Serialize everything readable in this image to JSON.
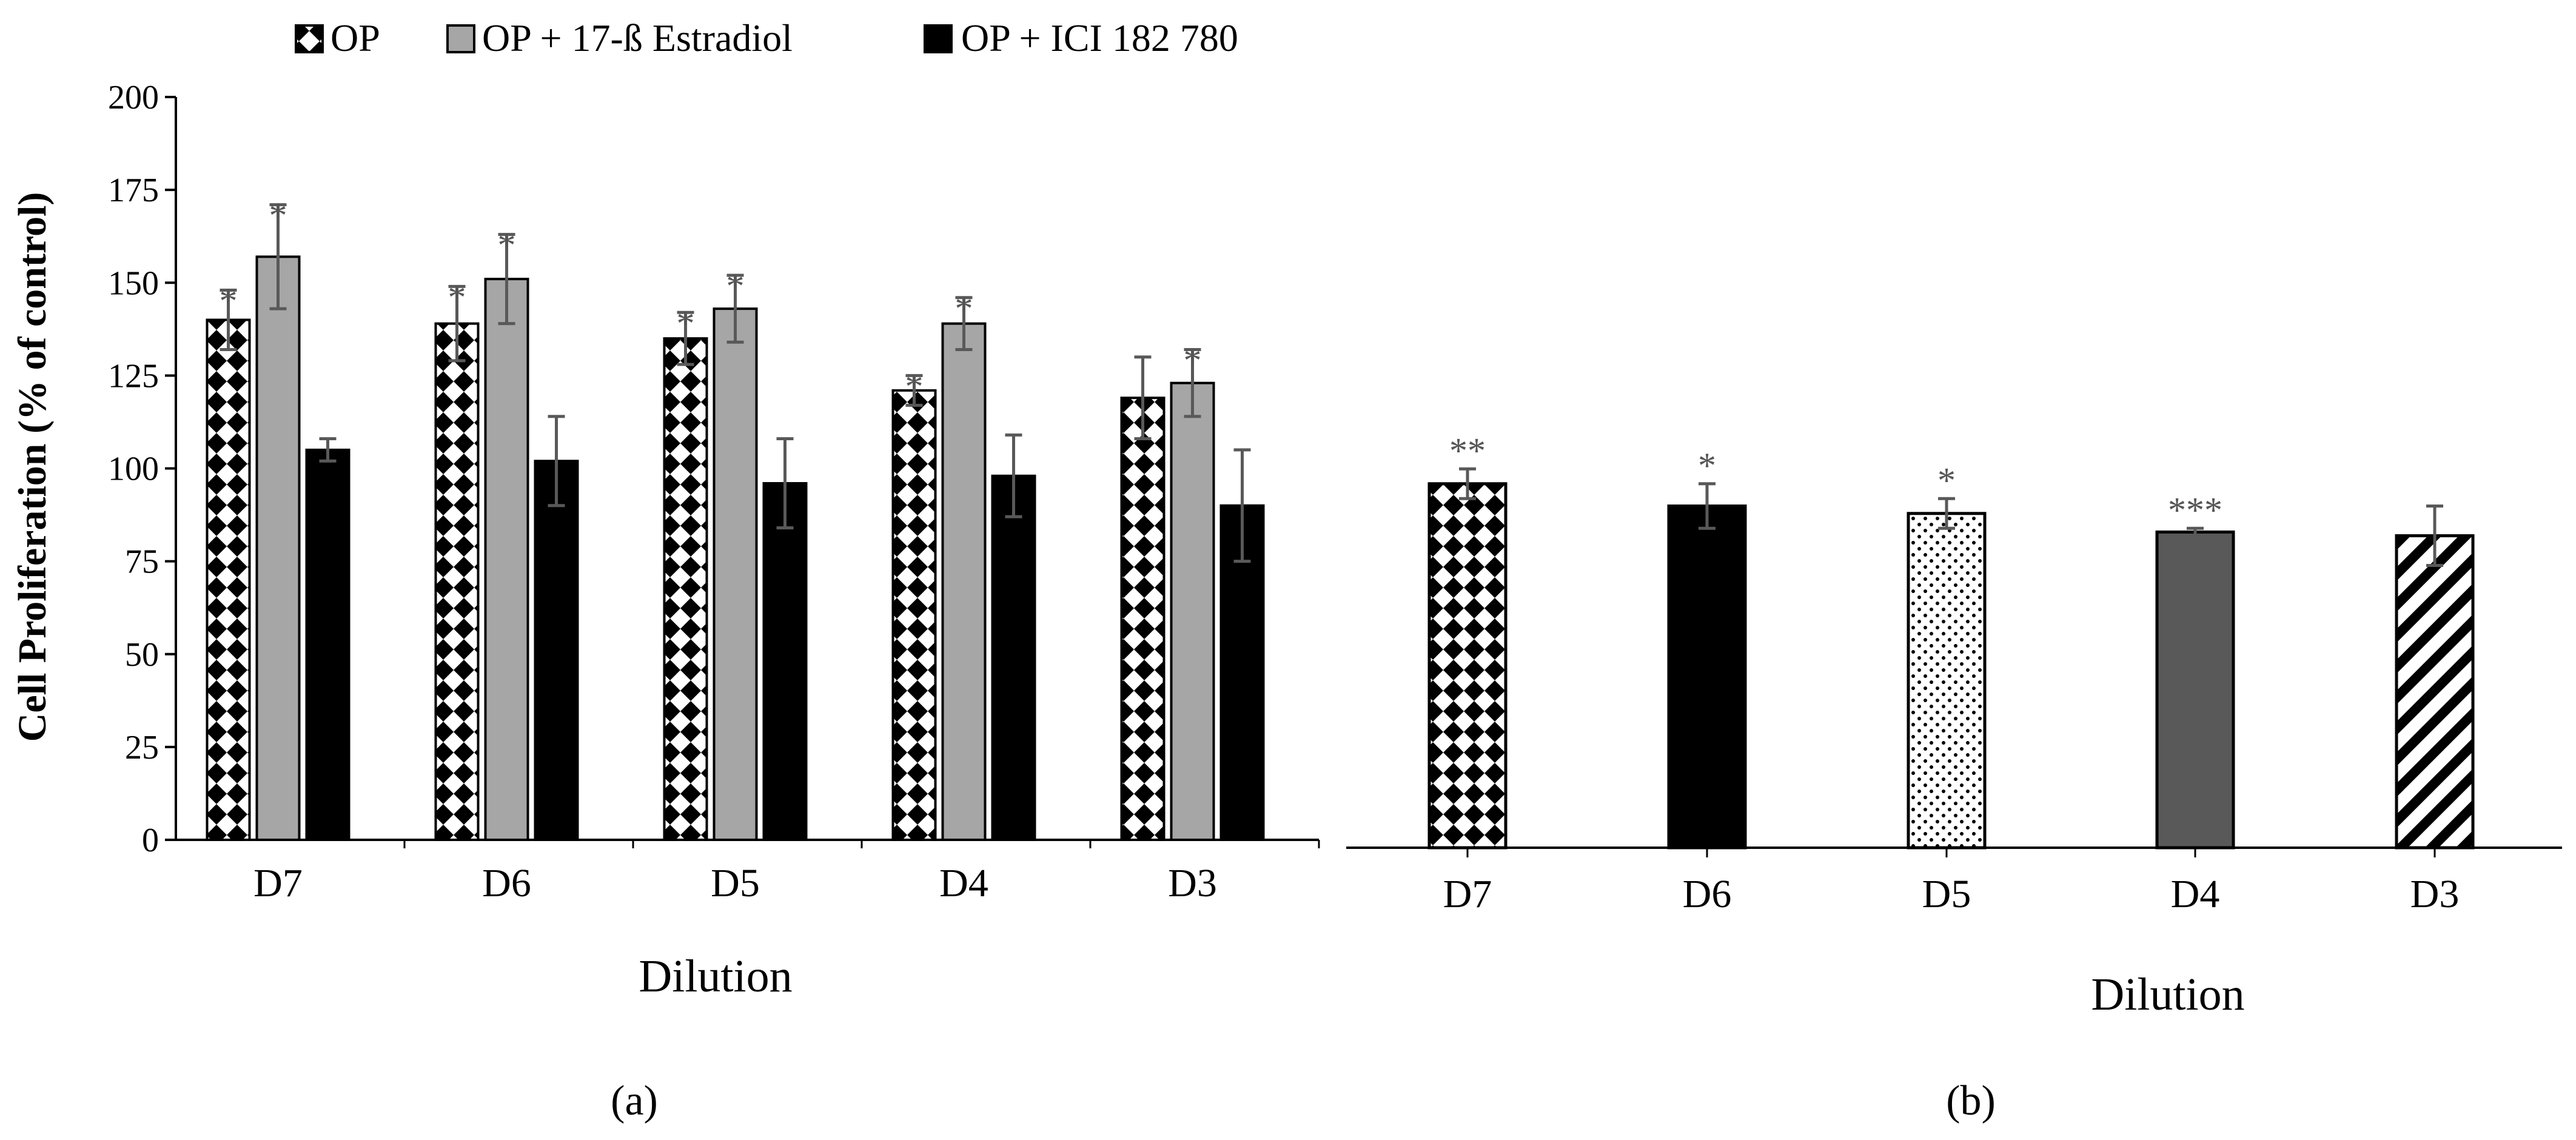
{
  "legend": [
    {
      "name": "OP",
      "pattern": "checker"
    },
    {
      "name": "OP + 17-ß Estradiol",
      "pattern": "gray"
    },
    {
      "name": "OP + ICI 182 780",
      "pattern": "black"
    }
  ],
  "panel_a_label": "(a)",
  "panel_b_label": "(b)",
  "colors": {
    "gray_fill": "#a6a6a6",
    "dark_fill": "#595959",
    "error_bar": "#595959",
    "axis": "#000000"
  },
  "chart_data": [
    {
      "type": "bar",
      "panel": "a",
      "categories": [
        "D7",
        "D6",
        "D5",
        "D4",
        "D3"
      ],
      "series": [
        {
          "name": "OP",
          "values": [
            140,
            139,
            135,
            121,
            119
          ],
          "errors": [
            8,
            10,
            7,
            4,
            11
          ],
          "sig": [
            "*",
            "*",
            "*",
            "*",
            ""
          ]
        },
        {
          "name": "OP + 17-ß Estradiol",
          "values": [
            157,
            151,
            143,
            139,
            123
          ],
          "errors": [
            14,
            12,
            9,
            7,
            9
          ],
          "sig": [
            "*",
            "*",
            "*",
            "*",
            "*"
          ]
        },
        {
          "name": "OP + ICI 182 780",
          "values": [
            105,
            102,
            96,
            98,
            90
          ],
          "errors": [
            3,
            12,
            12,
            11,
            15
          ],
          "sig": [
            "",
            "",
            "",
            "",
            ""
          ]
        }
      ],
      "xlabel": "Dilution",
      "ylabel": "Cell Proliferation (% of control)",
      "ylim": [
        0,
        200
      ],
      "yticks": [
        "0",
        "25",
        "50",
        "75",
        "100",
        "125",
        "150",
        "175",
        "200"
      ]
    },
    {
      "type": "bar",
      "panel": "b",
      "categories": [
        "D7",
        "D6",
        "D5",
        "D4",
        "D3"
      ],
      "values": [
        98,
        92,
        90,
        85,
        84
      ],
      "errors": [
        4,
        6,
        4,
        1,
        8
      ],
      "sig": [
        "**",
        "*",
        "*",
        "***",
        ""
      ],
      "patterns": [
        "checker",
        "black",
        "dots",
        "dark",
        "stripes"
      ],
      "xlabel": "Dilution",
      "ylim": [
        0,
        200
      ]
    }
  ]
}
